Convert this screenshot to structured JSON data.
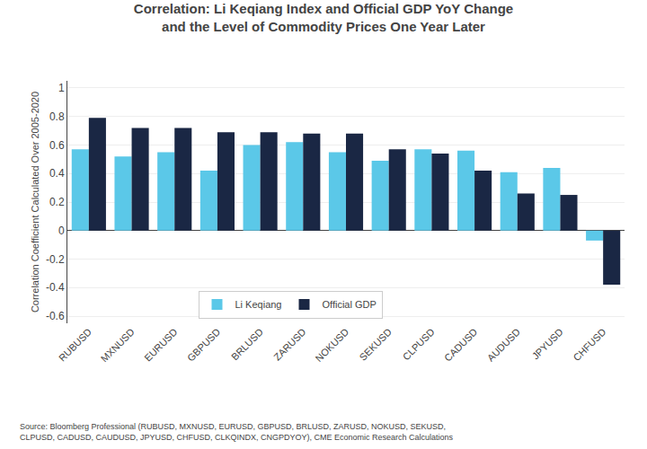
{
  "chart_data": {
    "type": "bar",
    "title": "Correlation: Li Keqiang Index and Official GDP YoY Change",
    "subtitle": "and the Level of Commodity Prices One Year Later",
    "ylabel": "Correlation Coefficient Calculated Over 2005-2020",
    "categories": [
      "RUBUSD",
      "MXNUSD",
      "EURUSD",
      "GBPUSD",
      "BRLUSD",
      "ZARUSD",
      "NOKUSD",
      "SEKUSD",
      "CLPUSD",
      "CADUSD",
      "AUDUSD",
      "JPYUSD",
      "CHFUSD"
    ],
    "series": [
      {
        "name": "Li Keqiang",
        "color": "#5BC8E8",
        "values": [
          0.57,
          0.52,
          0.55,
          0.42,
          0.6,
          0.62,
          0.55,
          0.49,
          0.57,
          0.56,
          0.41,
          0.44,
          -0.07
        ]
      },
      {
        "name": "Official GDP",
        "color": "#1A2744",
        "values": [
          0.79,
          0.72,
          0.72,
          0.69,
          0.69,
          0.68,
          0.68,
          0.57,
          0.54,
          0.42,
          0.26,
          0.25,
          -0.38
        ]
      }
    ],
    "ylim": [
      -0.65,
      1.05
    ],
    "yticks": [
      -0.6,
      -0.4,
      -0.2,
      0,
      0.2,
      0.4,
      0.6,
      0.8,
      1
    ],
    "grid": true,
    "legend": "lower center",
    "annotations": [
      "Source: Bloomberg Professional (RUBUSD, MXNUSD, EURUSD, GBPUSD, BRLUSD, ZARUSD, NOKUSD, SEKUSD,\nCLPUSD, CADUSD, CAUDUSD, JPYUSD, CHFUSD, CLKQINDX, CNGPDYOY), CME Economic Research Calculations"
    ]
  }
}
